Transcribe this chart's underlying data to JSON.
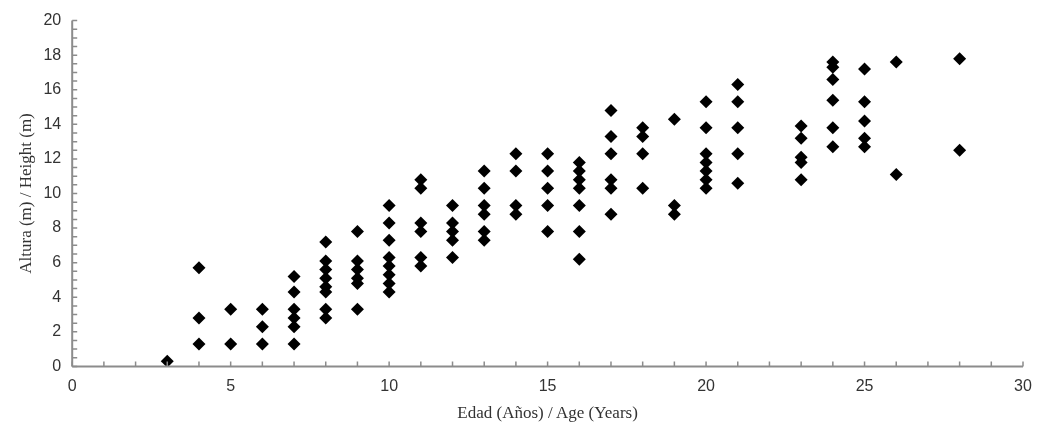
{
  "chart_data": {
    "type": "scatter",
    "xlabel": "Edad (Años) / Age (Years)",
    "ylabel": "Altura (m) / Height (m)",
    "xlim": [
      0,
      30
    ],
    "xticks": [
      0,
      5,
      10,
      15,
      20,
      25,
      30
    ],
    "ylim": [
      0,
      20
    ],
    "yticks": [
      0,
      2,
      4,
      6,
      8,
      10,
      12,
      14,
      16,
      18,
      20
    ],
    "grid": false,
    "legend": false,
    "marker": "diamond",
    "series": [
      {
        "color": "#000000",
        "x": [
          3,
          4,
          4,
          4,
          5,
          5,
          6,
          6,
          6,
          7,
          7,
          7,
          7,
          7,
          7,
          8,
          8,
          8,
          8,
          8,
          8,
          8,
          8,
          9,
          9,
          9,
          9,
          9,
          9,
          10,
          10,
          10,
          10,
          10,
          10,
          10,
          10,
          11,
          11,
          11,
          11,
          11,
          11,
          12,
          12,
          12,
          12,
          12,
          13,
          13,
          13,
          13,
          13,
          13,
          14,
          14,
          14,
          14,
          15,
          15,
          15,
          15,
          15,
          16,
          16,
          16,
          16,
          16,
          16,
          16,
          17,
          17,
          17,
          17,
          17,
          17,
          18,
          18,
          18,
          18,
          19,
          19,
          19,
          20,
          20,
          20,
          20,
          20,
          20,
          20,
          21,
          21,
          21,
          21,
          21,
          23,
          23,
          23,
          23,
          23,
          24,
          24,
          24,
          24,
          24,
          24,
          25,
          25,
          25,
          25,
          25,
          26,
          26,
          28,
          28
        ],
        "values": [
          0.3,
          5.7,
          2.8,
          1.3,
          3.3,
          1.3,
          3.3,
          2.3,
          1.3,
          5.2,
          4.3,
          3.3,
          2.8,
          2.3,
          1.3,
          7.2,
          6.1,
          5.6,
          5.1,
          4.6,
          4.3,
          3.3,
          2.8,
          7.8,
          6.1,
          5.6,
          5.1,
          4.8,
          3.3,
          9.3,
          8.3,
          7.3,
          6.3,
          5.8,
          5.3,
          4.8,
          4.3,
          10.8,
          10.3,
          8.3,
          7.8,
          6.3,
          5.8,
          9.3,
          8.3,
          7.8,
          7.3,
          6.3,
          11.3,
          10.3,
          9.3,
          8.8,
          7.8,
          7.3,
          12.3,
          11.3,
          9.3,
          8.8,
          12.3,
          11.3,
          10.3,
          9.3,
          7.8,
          11.8,
          11.3,
          10.8,
          10.3,
          9.3,
          7.8,
          6.2,
          14.8,
          13.3,
          12.3,
          10.8,
          10.3,
          8.8,
          13.8,
          13.3,
          12.3,
          10.3,
          14.3,
          9.3,
          8.8,
          15.3,
          13.8,
          12.3,
          11.8,
          11.3,
          10.8,
          10.3,
          16.3,
          15.3,
          13.8,
          12.3,
          10.6,
          13.9,
          13.2,
          12.1,
          11.8,
          10.8,
          17.6,
          17.3,
          16.6,
          15.4,
          13.8,
          12.7,
          17.2,
          15.3,
          14.2,
          13.2,
          12.7,
          17.6,
          11.1,
          17.8,
          12.5
        ]
      }
    ]
  }
}
